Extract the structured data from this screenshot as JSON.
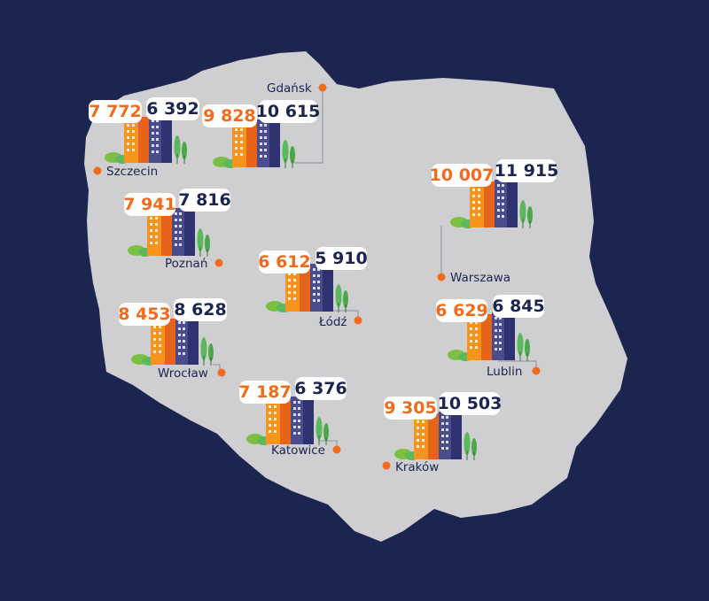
{
  "colors": {
    "background": "#1c2550",
    "map_fill": "#cfcfd1",
    "orange": "#f26b1d",
    "navy": "#1c2550",
    "building_orange": "#f7941d",
    "building_orange_dark": "#e8631a",
    "building_blue": "#4a4d8c",
    "building_blue_dark": "#2e3270",
    "tree": "#5cb85c",
    "bush": "#7bc043"
  },
  "cities": [
    {
      "id": "szczecin",
      "name": "Szczecin",
      "orange_value": "7 772",
      "navy_value": "6 392"
    },
    {
      "id": "gdansk",
      "name": "Gdańsk",
      "orange_value": "9 828",
      "navy_value": "10 615"
    },
    {
      "id": "warszawa",
      "name": "Warszawa",
      "orange_value": "10 007",
      "navy_value": "11 915"
    },
    {
      "id": "poznan",
      "name": "Poznań",
      "orange_value": "7 941",
      "navy_value": "7 816"
    },
    {
      "id": "lodz",
      "name": "Łódź",
      "orange_value": "6 612",
      "navy_value": "5 910"
    },
    {
      "id": "wroclaw",
      "name": "Wrocław",
      "orange_value": "8 453",
      "navy_value": "8 628"
    },
    {
      "id": "lublin",
      "name": "Lublin",
      "orange_value": "6 629",
      "navy_value": "6 845"
    },
    {
      "id": "katowice",
      "name": "Katowice",
      "orange_value": "7 187",
      "navy_value": "6 376"
    },
    {
      "id": "krakow",
      "name": "Kraków",
      "orange_value": "9 305",
      "navy_value": "10 503"
    }
  ]
}
